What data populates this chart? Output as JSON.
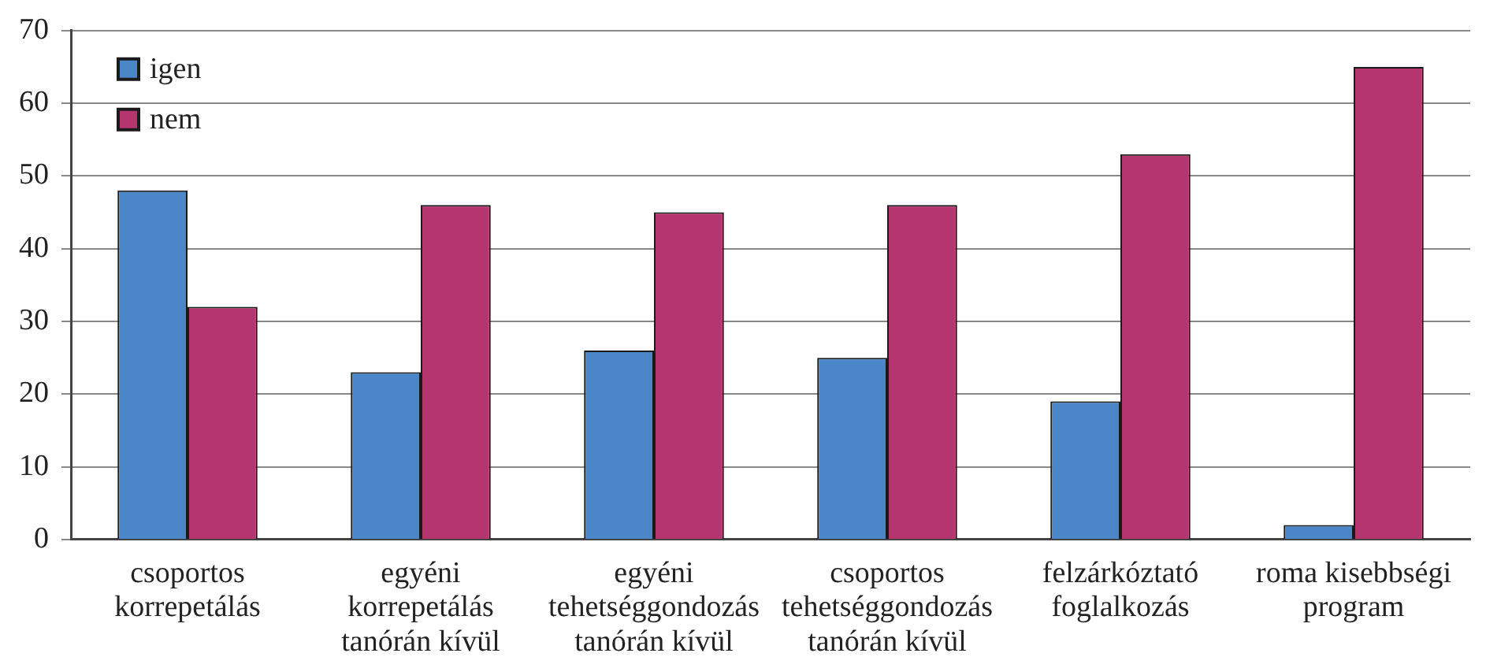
{
  "chart_data": {
    "type": "bar",
    "categories": [
      "csoportos\nkorrepetálás",
      "egyéni\nkorrepetálás\ntanórán kívül",
      "egyéni\ntehetséggondozás\ntanórán kívül",
      "csoportos\ntehetséggondozás\ntanórán kívül",
      "felzárkóztató\nfoglalkozás",
      "roma kisebbségi\nprogram"
    ],
    "series": [
      {
        "name": "igen",
        "color": "#4a86c8",
        "values": [
          48,
          23,
          26,
          25,
          19,
          2
        ]
      },
      {
        "name": "nem",
        "color": "#b5366e",
        "values": [
          32,
          46,
          45,
          46,
          53,
          65
        ]
      }
    ],
    "ylim": [
      0,
      70
    ],
    "yticks": [
      0,
      10,
      20,
      30,
      40,
      50,
      60,
      70
    ],
    "grid": "y",
    "legend": "top left"
  }
}
